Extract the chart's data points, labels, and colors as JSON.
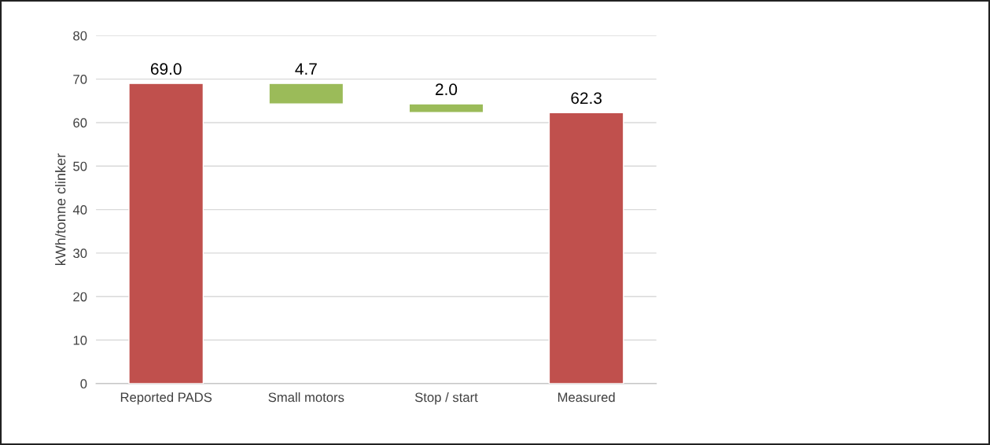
{
  "chart_data": {
    "type": "bar",
    "ylabel": "kWh/tonne clinker",
    "categories": [
      "Reported PADS",
      "Small motors",
      "Stop / start",
      "Measured"
    ],
    "values": [
      69.0,
      4.7,
      2.0,
      62.3
    ],
    "base": [
      0,
      64.3,
      62.3,
      0
    ],
    "colors": [
      "#c0504d",
      "#9bbb59",
      "#9bbb59",
      "#c0504d"
    ],
    "value_labels": [
      "69.0",
      "4.7",
      "2.0",
      "62.3"
    ],
    "ylim": [
      0,
      80
    ],
    "yticks": [
      0,
      10,
      20,
      30,
      40,
      50,
      60,
      70,
      80
    ],
    "grid": "y",
    "legend": false
  }
}
